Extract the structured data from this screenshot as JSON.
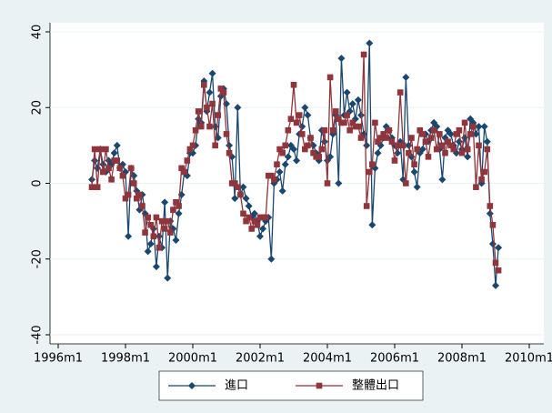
{
  "chart_data": {
    "type": "line",
    "x": [
      "1997m1",
      "1997m2",
      "1997m3",
      "1997m4",
      "1997m5",
      "1997m6",
      "1997m7",
      "1997m8",
      "1997m9",
      "1997m10",
      "1997m11",
      "1997m12",
      "1998m1",
      "1998m2",
      "1998m3",
      "1998m4",
      "1998m5",
      "1998m6",
      "1998m7",
      "1998m8",
      "1998m9",
      "1998m10",
      "1998m11",
      "1998m12",
      "1999m1",
      "1999m2",
      "1999m3",
      "1999m4",
      "1999m5",
      "1999m6",
      "1999m7",
      "1999m8",
      "1999m9",
      "1999m10",
      "1999m11",
      "1999m12",
      "2000m1",
      "2000m2",
      "2000m3",
      "2000m4",
      "2000m5",
      "2000m6",
      "2000m7",
      "2000m8",
      "2000m9",
      "2000m10",
      "2000m11",
      "2000m12",
      "2001m1",
      "2001m2",
      "2001m3",
      "2001m4",
      "2001m5",
      "2001m6",
      "2001m7",
      "2001m8",
      "2001m9",
      "2001m10",
      "2001m11",
      "2001m12",
      "2002m1",
      "2002m2",
      "2002m3",
      "2002m4",
      "2002m5",
      "2002m6",
      "2002m7",
      "2002m8",
      "2002m9",
      "2002m10",
      "2002m11",
      "2002m12",
      "2003m1",
      "2003m2",
      "2003m3",
      "2003m4",
      "2003m5",
      "2003m6",
      "2003m7",
      "2003m8",
      "2003m9",
      "2003m10",
      "2003m11",
      "2003m12",
      "2004m1",
      "2004m2",
      "2004m3",
      "2004m4",
      "2004m5",
      "2004m6",
      "2004m7",
      "2004m8",
      "2004m9",
      "2004m10",
      "2004m11",
      "2004m12",
      "2005m1",
      "2005m2",
      "2005m3",
      "2005m4",
      "2005m5",
      "2005m6",
      "2005m7",
      "2005m8",
      "2005m9",
      "2005m10",
      "2005m11",
      "2005m12",
      "2006m1",
      "2006m2",
      "2006m3",
      "2006m4",
      "2006m5",
      "2006m6",
      "2006m7",
      "2006m8",
      "2006m9",
      "2006m10",
      "2006m11",
      "2006m12",
      "2007m1",
      "2007m2",
      "2007m3",
      "2007m4",
      "2007m5",
      "2007m6",
      "2007m7",
      "2007m8",
      "2007m9",
      "2007m10",
      "2007m11",
      "2007m12",
      "2008m1",
      "2008m2",
      "2008m3",
      "2008m4",
      "2008m5",
      "2008m6",
      "2008m7",
      "2008m8",
      "2008m9",
      "2008m10",
      "2008m11",
      "2008m12",
      "2009m1",
      "2009m2"
    ],
    "series": [
      {
        "name": "進口",
        "color": "#1a476f",
        "marker": "diamond",
        "values": [
          1,
          6,
          4,
          9,
          5,
          3,
          6,
          5,
          8,
          10,
          4,
          5,
          3,
          -14,
          4,
          2,
          -2,
          -7,
          -3,
          -8,
          -18,
          -16,
          -12,
          -22,
          -14,
          -17,
          -5,
          -25,
          -10,
          -12,
          -15,
          -8,
          -3,
          3,
          2,
          8,
          8,
          10,
          17,
          16,
          27,
          19,
          24,
          29,
          15,
          12,
          23,
          25,
          21,
          10,
          7,
          -4,
          20,
          -3,
          -1,
          -4,
          -6,
          -9,
          -8,
          -10,
          -14,
          -12,
          -10,
          -9,
          -20,
          0,
          1,
          3,
          -2,
          5,
          7,
          10,
          9,
          6,
          13,
          15,
          20,
          18,
          12,
          10,
          8,
          6,
          14,
          11,
          6,
          7,
          13,
          18,
          0,
          33,
          18,
          24,
          19,
          21,
          17,
          22,
          18,
          13,
          10,
          37,
          -11,
          4,
          8,
          10,
          12,
          15,
          14,
          12,
          10,
          8,
          11,
          1,
          28,
          10,
          7,
          3,
          -1,
          8,
          9,
          13,
          11,
          14,
          16,
          15,
          9,
          1,
          12,
          14,
          13,
          10,
          8,
          11,
          9,
          12,
          7,
          17,
          16,
          13,
          15,
          0,
          15,
          11,
          -8,
          -16,
          -27,
          -17
        ]
      },
      {
        "name": "整體出口",
        "color": "#90353b",
        "marker": "square",
        "values": [
          -1,
          9,
          -1,
          9,
          3,
          9,
          4,
          1,
          6,
          6,
          4,
          2,
          -4,
          -3,
          4,
          0,
          -4,
          -3,
          -6,
          -13,
          -9,
          -11,
          -14,
          -9,
          -17,
          -10,
          -12,
          -10,
          -13,
          -7,
          -5,
          -6,
          4,
          3,
          6,
          9,
          10,
          14,
          19,
          15,
          26,
          20,
          15,
          21,
          10,
          18,
          25,
          24,
          13,
          8,
          0,
          0,
          -1,
          -3,
          -8,
          -10,
          -9,
          -12,
          -10,
          -11,
          -9,
          -9,
          -9,
          2,
          2,
          1,
          5,
          9,
          8,
          10,
          14,
          17,
          26,
          16,
          18,
          13,
          9,
          10,
          12,
          8,
          7,
          7,
          9,
          14,
          0,
          28,
          14,
          19,
          17,
          16,
          16,
          18,
          14,
          16,
          15,
          15,
          12,
          34,
          -6,
          3,
          5,
          16,
          11,
          12,
          13,
          12,
          14,
          11,
          6,
          10,
          24,
          10,
          0,
          8,
          12,
          5,
          9,
          14,
          13,
          11,
          7,
          12,
          14,
          9,
          13,
          10,
          8,
          11,
          10,
          9,
          13,
          14,
          8,
          16,
          9,
          13,
          15,
          -1,
          10,
          1,
          3,
          9,
          -6,
          -11,
          -21,
          -23
        ]
      }
    ],
    "xlim": [
      "1996m1",
      "2010m1"
    ],
    "xticks": [
      "1996m1",
      "1998m1",
      "2000m1",
      "2002m1",
      "2004m1",
      "2006m1",
      "2008m1",
      "2010m1"
    ],
    "ylim": [
      -40,
      40
    ],
    "yticks": [
      -40,
      -20,
      0,
      20,
      40
    ],
    "grid": true,
    "legend": "bottom"
  }
}
